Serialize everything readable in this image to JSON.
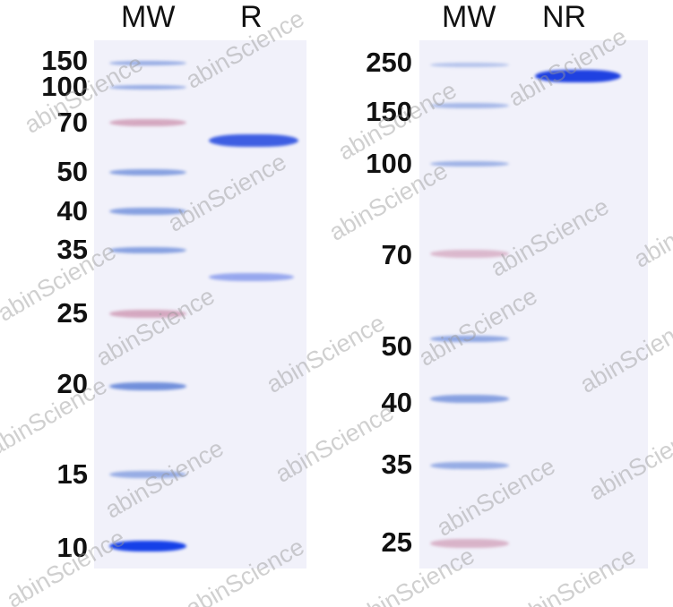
{
  "left_panel": {
    "lane_headers": [
      "MW",
      "R"
    ],
    "mw_labels": [
      "150",
      "100",
      "70",
      "50",
      "40",
      "35",
      "25",
      "20",
      "15",
      "10"
    ]
  },
  "right_panel": {
    "lane_headers": [
      "MW",
      "NR"
    ],
    "mw_labels": [
      "250",
      "150",
      "100",
      "70",
      "50",
      "40",
      "35",
      "25"
    ]
  },
  "watermark": "abinScience",
  "colors": {
    "marker_blue": "#5b7fd6",
    "marker_pink": "#c98aa8",
    "sample_band": "#2b4fe0",
    "gel_bg": "#f1f1fa"
  }
}
